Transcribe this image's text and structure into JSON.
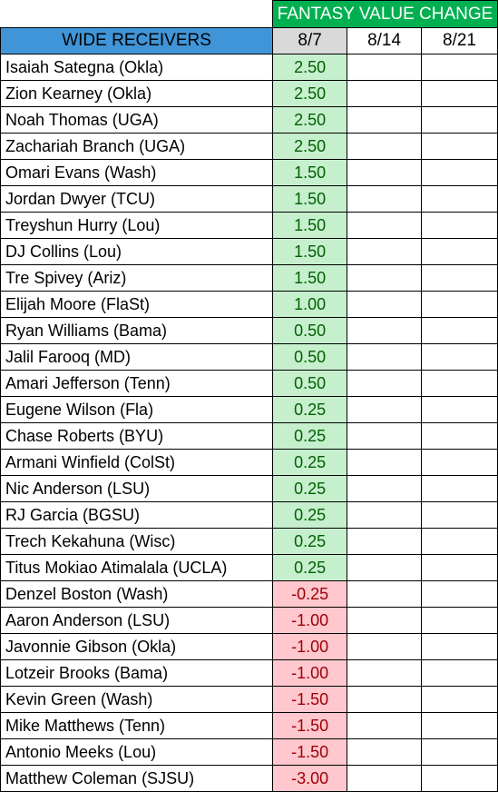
{
  "header": {
    "group_title": "FANTASY VALUE CHANGE",
    "position_label": "WIDE RECEIVERS",
    "weeks": [
      "8/7",
      "8/14",
      "8/21"
    ]
  },
  "rows": [
    {
      "name": "Isaiah Sategna (Okla)",
      "value": "2.50",
      "sign": "pos"
    },
    {
      "name": "Zion Kearney (Okla)",
      "value": "2.50",
      "sign": "pos"
    },
    {
      "name": "Noah Thomas (UGA)",
      "value": "2.50",
      "sign": "pos"
    },
    {
      "name": "Zachariah Branch (UGA)",
      "value": "2.50",
      "sign": "pos"
    },
    {
      "name": "Omari Evans (Wash)",
      "value": "1.50",
      "sign": "pos"
    },
    {
      "name": "Jordan Dwyer (TCU)",
      "value": "1.50",
      "sign": "pos"
    },
    {
      "name": "Treyshun Hurry (Lou)",
      "value": "1.50",
      "sign": "pos"
    },
    {
      "name": "DJ Collins (Lou)",
      "value": "1.50",
      "sign": "pos"
    },
    {
      "name": "Tre Spivey (Ariz)",
      "value": "1.50",
      "sign": "pos"
    },
    {
      "name": "Elijah Moore (FlaSt)",
      "value": "1.00",
      "sign": "pos"
    },
    {
      "name": "Ryan Williams (Bama)",
      "value": "0.50",
      "sign": "pos"
    },
    {
      "name": "Jalil Farooq (MD)",
      "value": "0.50",
      "sign": "pos"
    },
    {
      "name": "Amari Jefferson (Tenn)",
      "value": "0.50",
      "sign": "pos"
    },
    {
      "name": "Eugene Wilson (Fla)",
      "value": "0.25",
      "sign": "pos"
    },
    {
      "name": "Chase Roberts (BYU)",
      "value": "0.25",
      "sign": "pos"
    },
    {
      "name": "Armani Winfield (ColSt)",
      "value": "0.25",
      "sign": "pos"
    },
    {
      "name": "Nic Anderson (LSU)",
      "value": "0.25",
      "sign": "pos"
    },
    {
      "name": "RJ Garcia (BGSU)",
      "value": "0.25",
      "sign": "pos"
    },
    {
      "name": "Trech Kekahuna (Wisc)",
      "value": "0.25",
      "sign": "pos"
    },
    {
      "name": "Titus Mokiao Atimalala (UCLA)",
      "value": "0.25",
      "sign": "pos"
    },
    {
      "name": "Denzel Boston (Wash)",
      "value": "-0.25",
      "sign": "neg"
    },
    {
      "name": "Aaron Anderson (LSU)",
      "value": "-1.00",
      "sign": "neg"
    },
    {
      "name": "Javonnie Gibson (Okla)",
      "value": "-1.00",
      "sign": "neg"
    },
    {
      "name": "Lotzeir Brooks (Bama)",
      "value": "-1.00",
      "sign": "neg"
    },
    {
      "name": "Kevin Green (Wash)",
      "value": "-1.50",
      "sign": "neg"
    },
    {
      "name": "Mike Matthews (Tenn)",
      "value": "-1.50",
      "sign": "neg"
    },
    {
      "name": "Antonio Meeks (Lou)",
      "value": "-1.50",
      "sign": "neg"
    },
    {
      "name": "Matthew Coleman (SJSU)",
      "value": "-3.00",
      "sign": "neg"
    }
  ],
  "colors": {
    "group_header_bg": "#00b050",
    "position_header_bg": "#3f95d8",
    "week_header_bg": "#d9d9d9",
    "positive_bg": "#c6efce",
    "positive_text": "#006100",
    "negative_bg": "#ffc7ce",
    "negative_text": "#9c0006"
  }
}
